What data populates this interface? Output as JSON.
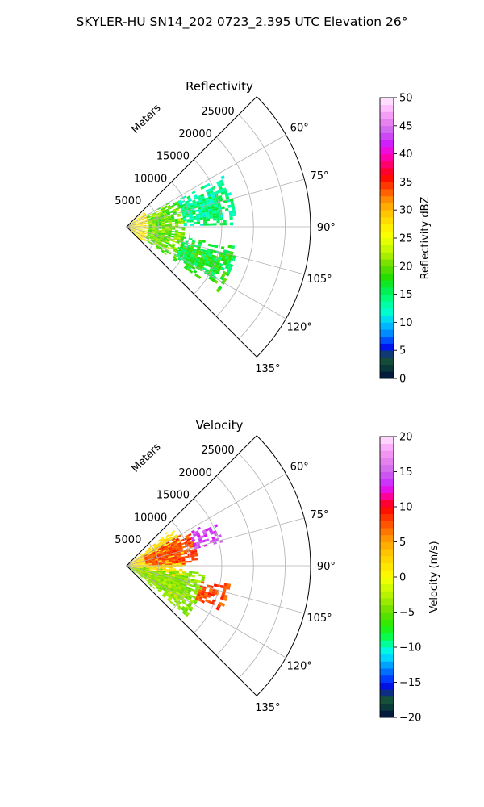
{
  "figure": {
    "suptitle": "SKYLER-HU  SN14_202  0723_2.395 UTC Elevation 26°"
  },
  "chart_data": [
    {
      "type": "heatmap",
      "projection": "polar-sector",
      "title": "Reflectivity",
      "range_label": "Meters",
      "range_ticks": [
        "5000",
        "10000",
        "15000",
        "20000",
        "25000"
      ],
      "range_tick_values": [
        5000,
        10000,
        15000,
        20000,
        25000
      ],
      "range_max": 29000,
      "angle_range_deg": [
        45,
        135
      ],
      "angle_ticks": [
        "60°",
        "75°",
        "90°",
        "105°",
        "120°",
        "135°"
      ],
      "angle_tick_values": [
        60,
        75,
        90,
        105,
        120,
        135
      ],
      "grid": true,
      "colorbar": {
        "label": "Reflectivity dBZ",
        "min": 0,
        "max": 50,
        "ticks": [
          "0",
          "5",
          "10",
          "15",
          "20",
          "25",
          "30",
          "35",
          "40",
          "45",
          "50"
        ],
        "stops": [
          [
            0,
            "#000c3d"
          ],
          [
            2,
            "#0a3a3a"
          ],
          [
            4,
            "#1a5c3a"
          ],
          [
            5,
            "#0000cc"
          ],
          [
            6,
            "#0022ff"
          ],
          [
            8,
            "#0088ff"
          ],
          [
            10,
            "#00ccff"
          ],
          [
            12,
            "#00ffcc"
          ],
          [
            14,
            "#00ff88"
          ],
          [
            16,
            "#00ee44"
          ],
          [
            18,
            "#22dd00"
          ],
          [
            20,
            "#66dd00"
          ],
          [
            22,
            "#aaee00"
          ],
          [
            24,
            "#ddff00"
          ],
          [
            26,
            "#ffff00"
          ],
          [
            28,
            "#ffdd00"
          ],
          [
            30,
            "#ffbb00"
          ],
          [
            32,
            "#ff8800"
          ],
          [
            34,
            "#ff4400"
          ],
          [
            36,
            "#ff0000"
          ],
          [
            38,
            "#ff0066"
          ],
          [
            40,
            "#ff00cc"
          ],
          [
            42,
            "#cc22ff"
          ],
          [
            44,
            "#cc66ee"
          ],
          [
            46,
            "#ee88ee"
          ],
          [
            48,
            "#ffbbff"
          ],
          [
            50,
            "#ffeeff"
          ]
        ]
      },
      "field_summary": [
        {
          "angle_from": 48,
          "angle_to": 132,
          "range_from": 0,
          "range_to": 3500,
          "value": 27
        },
        {
          "angle_from": 60,
          "angle_to": 125,
          "range_from": 3500,
          "range_to": 9000,
          "value": 20
        },
        {
          "angle_from": 62,
          "angle_to": 88,
          "range_from": 9000,
          "range_to": 17000,
          "value": 14
        },
        {
          "angle_from": 100,
          "angle_to": 125,
          "range_from": 9000,
          "range_to": 17500,
          "value": 17
        }
      ]
    },
    {
      "type": "heatmap",
      "projection": "polar-sector",
      "title": "Velocity",
      "range_label": "Meters",
      "range_ticks": [
        "5000",
        "10000",
        "15000",
        "20000",
        "25000"
      ],
      "range_tick_values": [
        5000,
        10000,
        15000,
        20000,
        25000
      ],
      "range_max": 29000,
      "angle_range_deg": [
        45,
        135
      ],
      "angle_ticks": [
        "60°",
        "75°",
        "90°",
        "105°",
        "120°",
        "135°"
      ],
      "angle_tick_values": [
        60,
        75,
        90,
        105,
        120,
        135
      ],
      "grid": true,
      "colorbar": {
        "label": "Velocity (m/s)",
        "min": -20,
        "max": 20,
        "ticks": [
          "−20",
          "−15",
          "−10",
          "−5",
          "0",
          "5",
          "10",
          "15",
          "20"
        ],
        "stops": [
          [
            -20,
            "#000c3d"
          ],
          [
            -18.5,
            "#0a3a3a"
          ],
          [
            -17,
            "#1a5c3a"
          ],
          [
            -16,
            "#0000cc"
          ],
          [
            -15,
            "#0022ff"
          ],
          [
            -13,
            "#0088ff"
          ],
          [
            -11,
            "#00eeff"
          ],
          [
            -10,
            "#00ffcc"
          ],
          [
            -9,
            "#00ff66"
          ],
          [
            -7,
            "#22ee00"
          ],
          [
            -5,
            "#66dd00"
          ],
          [
            -3,
            "#aaee00"
          ],
          [
            -1,
            "#ddff00"
          ],
          [
            0,
            "#ffff00"
          ],
          [
            2,
            "#ffdd00"
          ],
          [
            4,
            "#ffbb00"
          ],
          [
            6,
            "#ff8800"
          ],
          [
            8,
            "#ff4400"
          ],
          [
            10,
            "#ff0000"
          ],
          [
            11,
            "#ff0066"
          ],
          [
            12,
            "#ff00cc"
          ],
          [
            13,
            "#cc22ff"
          ],
          [
            15,
            "#cc66ee"
          ],
          [
            17,
            "#ee88ee"
          ],
          [
            19,
            "#ffbbff"
          ],
          [
            20,
            "#ffeeff"
          ]
        ]
      },
      "field_summary": [
        {
          "angle_from": 50,
          "angle_to": 125,
          "range_from": 0,
          "range_to": 9000,
          "value": 2
        },
        {
          "angle_from": 60,
          "angle_to": 88,
          "range_from": 3000,
          "range_to": 11000,
          "value": 8
        },
        {
          "angle_from": 62,
          "angle_to": 75,
          "range_from": 11000,
          "range_to": 15500,
          "value": 14
        },
        {
          "angle_from": 95,
          "angle_to": 130,
          "range_from": 0,
          "range_to": 12000,
          "value": -4
        },
        {
          "angle_from": 100,
          "angle_to": 115,
          "range_from": 12000,
          "range_to": 16500,
          "value": 8
        }
      ]
    }
  ]
}
